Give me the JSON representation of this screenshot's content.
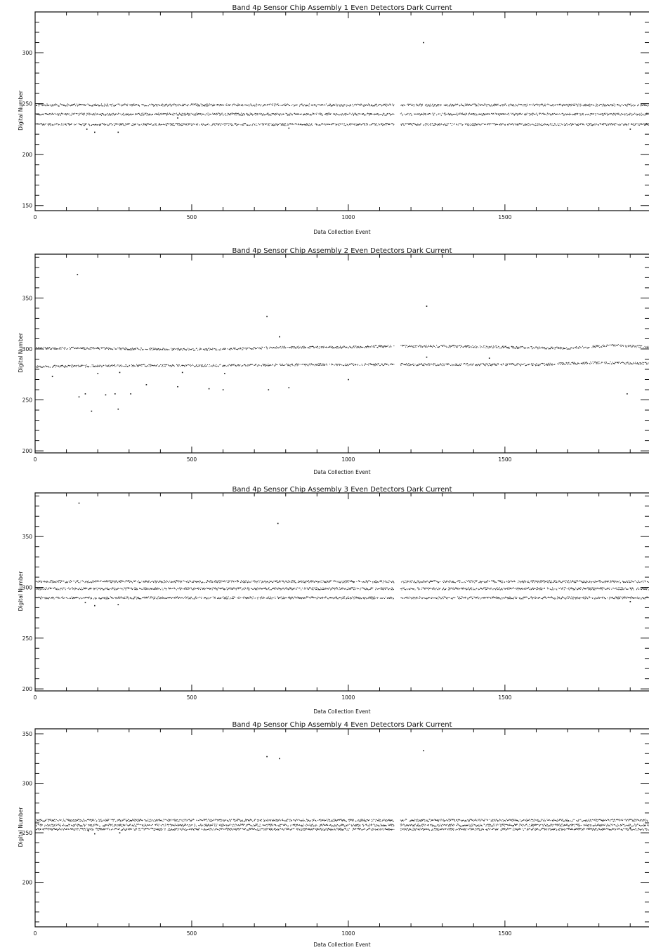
{
  "chart_data": [
    {
      "type": "scatter",
      "title": "Band 4p Sensor Chip Assembly 1 Even Detectors Dark Current",
      "xlabel": "Data Collection Event",
      "ylabel": "Digital Number",
      "xlim": [
        0,
        1960
      ],
      "ylim": [
        145,
        340
      ],
      "x_ticks": [
        0,
        500,
        1000,
        1500
      ],
      "y_ticks": [
        150,
        200,
        250,
        300
      ],
      "grid": false,
      "legend": "none",
      "data_gap": [
        1145,
        1165
      ],
      "bands": [
        {
          "level": 249,
          "points": [
            [
              0,
              249
            ],
            [
              490,
              249
            ],
            [
              980,
              249
            ],
            [
              1470,
              249
            ],
            [
              1960,
              249
            ]
          ]
        },
        {
          "level": 240,
          "points": [
            [
              0,
              240
            ],
            [
              490,
              240
            ],
            [
              980,
              240
            ],
            [
              1470,
              240
            ],
            [
              1960,
              240
            ]
          ]
        },
        {
          "level": 230,
          "points": [
            [
              0,
              230
            ],
            [
              490,
              230
            ],
            [
              980,
              230
            ],
            [
              1470,
              230
            ],
            [
              1960,
              230
            ]
          ]
        }
      ],
      "outliers": [
        [
          165,
          225
        ],
        [
          190,
          222
        ],
        [
          265,
          222
        ],
        [
          455,
          236
        ],
        [
          810,
          226
        ],
        [
          1240,
          310
        ],
        [
          1900,
          225
        ]
      ]
    },
    {
      "type": "scatter",
      "title": "Band 4p Sensor Chip Assembly 2 Even Detectors Dark Current",
      "xlabel": "Data Collection Event",
      "ylabel": "Digital Number",
      "xlim": [
        0,
        1960
      ],
      "ylim": [
        198,
        393
      ],
      "x_ticks": [
        0,
        500,
        1000,
        1500
      ],
      "y_ticks": [
        200,
        250,
        300,
        350
      ],
      "grid": false,
      "legend": "none",
      "data_gap": [
        1145,
        1165
      ],
      "bands": [
        {
          "level": 301,
          "points": [
            [
              0,
              301
            ],
            [
              200,
              301
            ],
            [
              400,
              300
            ],
            [
              600,
              300
            ],
            [
              800,
              302
            ],
            [
              1000,
              302
            ],
            [
              1150,
              303
            ],
            [
              1300,
              303
            ],
            [
              1500,
              302
            ],
            [
              1700,
              301
            ],
            [
              1850,
              304
            ],
            [
              1960,
              302
            ]
          ]
        },
        {
          "level": 284,
          "points": [
            [
              0,
              283
            ],
            [
              300,
              284
            ],
            [
              600,
              284
            ],
            [
              900,
              285
            ],
            [
              1150,
              285
            ],
            [
              1400,
              285
            ],
            [
              1600,
              285
            ],
            [
              1800,
              287
            ],
            [
              1960,
              286
            ]
          ]
        }
      ],
      "outliers": [
        [
          55,
          273
        ],
        [
          135,
          373
        ],
        [
          140,
          253
        ],
        [
          160,
          256
        ],
        [
          180,
          239
        ],
        [
          200,
          276
        ],
        [
          225,
          255
        ],
        [
          255,
          256
        ],
        [
          265,
          241
        ],
        [
          270,
          277
        ],
        [
          305,
          256
        ],
        [
          355,
          265
        ],
        [
          455,
          263
        ],
        [
          470,
          277
        ],
        [
          555,
          261
        ],
        [
          600,
          260
        ],
        [
          605,
          276
        ],
        [
          740,
          332
        ],
        [
          745,
          260
        ],
        [
          780,
          312
        ],
        [
          810,
          262
        ],
        [
          1000,
          270
        ],
        [
          1250,
          342
        ],
        [
          1250,
          292
        ],
        [
          1450,
          291
        ],
        [
          1890,
          256
        ]
      ]
    },
    {
      "type": "scatter",
      "title": "Band 4p Sensor Chip Assembly 3 Even Detectors Dark Current",
      "xlabel": "Data Collection Event",
      "ylabel": "Digital Number",
      "xlim": [
        0,
        1960
      ],
      "ylim": [
        198,
        393
      ],
      "x_ticks": [
        0,
        500,
        1000,
        1500
      ],
      "y_ticks": [
        200,
        250,
        300,
        350
      ],
      "grid": false,
      "legend": "none",
      "data_gap": [
        1145,
        1165
      ],
      "bands": [
        {
          "level": 306,
          "points": [
            [
              0,
              306
            ],
            [
              490,
              306
            ],
            [
              980,
              306
            ],
            [
              1470,
              306
            ],
            [
              1960,
              306
            ]
          ]
        },
        {
          "level": 299,
          "points": [
            [
              0,
              299
            ],
            [
              490,
              299
            ],
            [
              980,
              299
            ],
            [
              1470,
              299
            ],
            [
              1960,
              299
            ]
          ]
        },
        {
          "level": 290,
          "points": [
            [
              0,
              290
            ],
            [
              490,
              290
            ],
            [
              980,
              290
            ],
            [
              1470,
              290
            ],
            [
              1960,
              290
            ]
          ]
        }
      ],
      "outliers": [
        [
          140,
          383
        ],
        [
          160,
          285
        ],
        [
          190,
          282
        ],
        [
          265,
          283
        ],
        [
          775,
          363
        ],
        [
          1900,
          286
        ]
      ]
    },
    {
      "type": "scatter",
      "title": "Band 4p Sensor Chip Assembly 4 Even Detectors Dark Current",
      "xlabel": "Data Collection Event",
      "ylabel": "Digital Number",
      "xlim": [
        0,
        1960
      ],
      "ylim": [
        155,
        355
      ],
      "x_ticks": [
        0,
        500,
        1000,
        1500
      ],
      "y_ticks": [
        200,
        250,
        300,
        350
      ],
      "grid": false,
      "legend": "none",
      "data_gap": [
        1145,
        1165
      ],
      "bands": [
        {
          "level": 263,
          "points": [
            [
              0,
              263
            ],
            [
              490,
              263
            ],
            [
              980,
              263
            ],
            [
              1470,
              263
            ],
            [
              1960,
              263
            ]
          ]
        },
        {
          "level": 258,
          "points": [
            [
              0,
              258
            ],
            [
              490,
              258
            ],
            [
              980,
              258
            ],
            [
              1470,
              258
            ],
            [
              1960,
              258
            ]
          ]
        },
        {
          "level": 254,
          "points": [
            [
              0,
              254
            ],
            [
              490,
              254
            ],
            [
              980,
              254
            ],
            [
              1470,
              254
            ],
            [
              1960,
              254
            ]
          ]
        }
      ],
      "outliers": [
        [
          170,
          252
        ],
        [
          190,
          249
        ],
        [
          270,
          250
        ],
        [
          740,
          327
        ],
        [
          780,
          325
        ],
        [
          1240,
          333
        ],
        [
          1900,
          255
        ]
      ]
    }
  ]
}
